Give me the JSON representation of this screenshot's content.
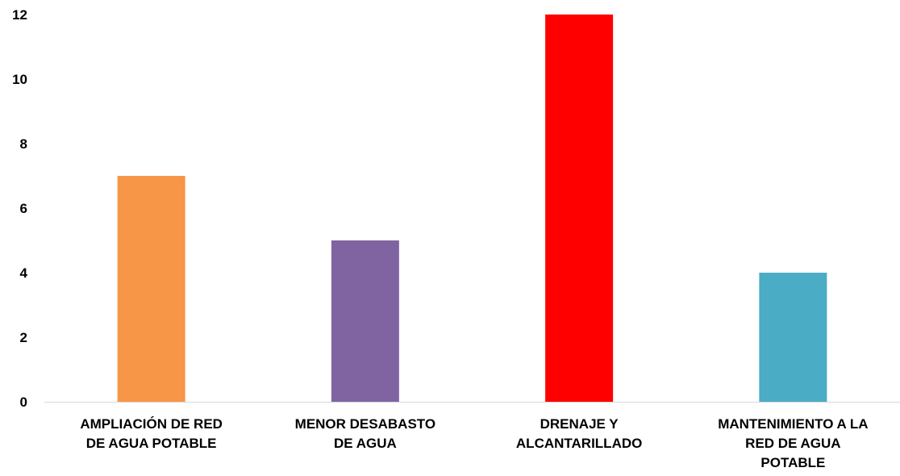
{
  "chart_data": {
    "type": "bar",
    "categories": [
      [
        "AMPLIACIÓN DE RED",
        "DE AGUA POTABLE"
      ],
      [
        "MENOR DESABASTO",
        "DE AGUA"
      ],
      [
        "DRENAJE Y",
        "ALCANTARILLADO"
      ],
      [
        "MANTENIMIENTO A LA",
        "RED DE AGUA",
        "POTABLE"
      ]
    ],
    "values": [
      7,
      5,
      12,
      4
    ],
    "colors": [
      "#F79646",
      "#8064A2",
      "#FF0000",
      "#4BACC6"
    ],
    "yticks": [
      0,
      2,
      4,
      6,
      8,
      10,
      12
    ],
    "ylim": [
      0,
      12
    ],
    "grid": false,
    "legend": "none",
    "title": "",
    "xlabel": "",
    "ylabel": ""
  }
}
